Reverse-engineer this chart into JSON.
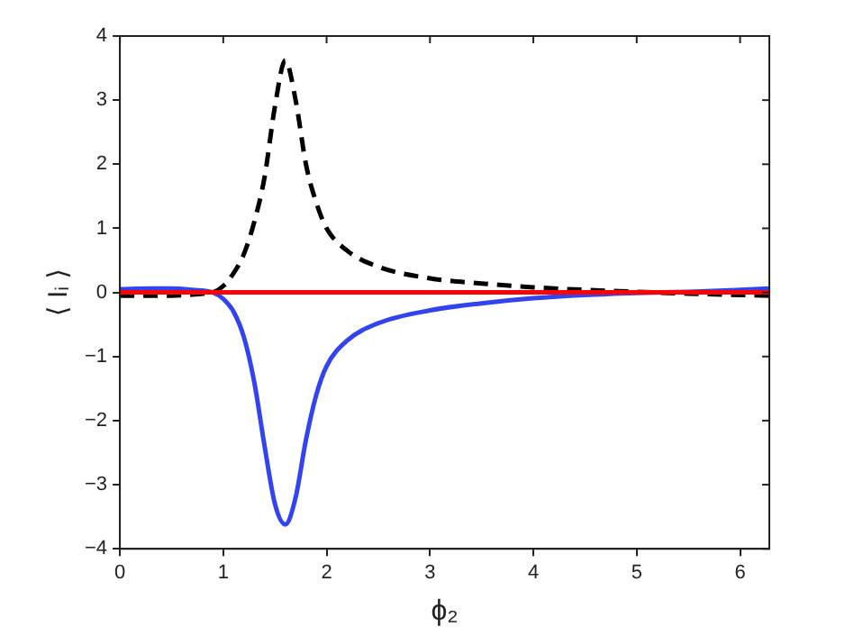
{
  "chart_data": {
    "type": "line",
    "xlabel": "ϕ₂",
    "ylabel": "⟨ Iᵢ ⟩",
    "xlim": [
      0,
      6.283
    ],
    "ylim": [
      -4,
      4
    ],
    "xticks": [
      0,
      1,
      2,
      3,
      4,
      5,
      6
    ],
    "yticks": [
      -4,
      -3,
      -2,
      -1,
      0,
      1,
      2,
      3,
      4
    ],
    "grid": false,
    "legend": false,
    "marker": "none",
    "series": [
      {
        "color": "#ff0000",
        "line_style": "solid",
        "x": [
          0,
          6.283
        ],
        "values": [
          0,
          0
        ]
      },
      {
        "color": "#3344ee",
        "line_style": "solid",
        "x": [
          0,
          0.3,
          0.5,
          0.7,
          0.9,
          1.0,
          1.1,
          1.2,
          1.3,
          1.4,
          1.5,
          1.6,
          1.7,
          1.8,
          1.9,
          2.0,
          2.2,
          2.5,
          3.0,
          3.5,
          4.0,
          4.5,
          5.0,
          5.5,
          6.0,
          6.283
        ],
        "values": [
          0.05,
          0.06,
          0.06,
          0.04,
          0,
          -0.1,
          -0.3,
          -0.7,
          -1.4,
          -2.4,
          -3.3,
          -3.62,
          -3.2,
          -2.3,
          -1.6,
          -1.15,
          -0.75,
          -0.48,
          -0.28,
          -0.17,
          -0.09,
          -0.04,
          -0.01,
          0.01,
          0.04,
          0.06
        ]
      },
      {
        "color": "#000000",
        "line_style": "dashed",
        "x": [
          0,
          0.5,
          0.8,
          0.9,
          1.0,
          1.1,
          1.2,
          1.3,
          1.4,
          1.5,
          1.6,
          1.7,
          1.8,
          1.9,
          2.0,
          2.2,
          2.5,
          3.0,
          3.5,
          4.0,
          4.5,
          5.0,
          5.5,
          6.0,
          6.283
        ],
        "values": [
          -0.05,
          -0.05,
          -0.02,
          0,
          0.1,
          0.3,
          0.6,
          1.1,
          1.8,
          2.9,
          3.62,
          3.0,
          2.0,
          1.4,
          1.0,
          0.65,
          0.4,
          0.22,
          0.14,
          0.08,
          0.04,
          0.01,
          -0.02,
          -0.04,
          -0.05
        ]
      }
    ]
  }
}
